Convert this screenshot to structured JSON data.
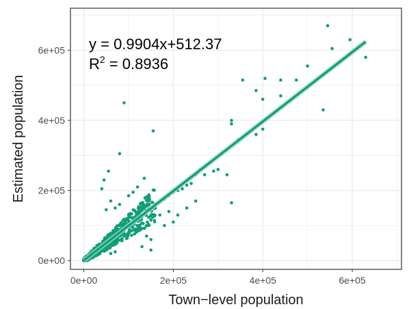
{
  "chart_data": {
    "type": "scatter",
    "title": "",
    "xlabel": "Town−level population",
    "ylabel": "Estimated population",
    "xlim": [
      -30000,
      710000
    ],
    "ylim": [
      -25000,
      720000
    ],
    "x_ticks": [
      0,
      200000,
      400000,
      600000
    ],
    "x_tick_labels": [
      "0e+00",
      "2e+05",
      "4e+05",
      "6e+05"
    ],
    "y_ticks": [
      0,
      200000,
      400000,
      600000
    ],
    "y_tick_labels": [
      "0e+00",
      "2e+05",
      "4e+05",
      "6e+05"
    ],
    "grid": true,
    "legend": "none",
    "colors": {
      "points": "#0f9e78",
      "line": "#0f9e78",
      "band": "#9fd6c2",
      "grid": "#ebebeb",
      "border": "#333333"
    },
    "annotation": {
      "equation": "y = 0.9904x+512.37",
      "r2_base": "R",
      "r2_sup": "2",
      "r2_value": " = 0.8936"
    },
    "fit": {
      "slope": 0.9904,
      "intercept": 512.37,
      "x_range": [
        0,
        630000
      ]
    },
    "points": [
      [
        545000,
        670000
      ],
      [
        555000,
        605000
      ],
      [
        595000,
        630000
      ],
      [
        630000,
        580000
      ],
      [
        500000,
        555000
      ],
      [
        535000,
        430000
      ],
      [
        475000,
        515000
      ],
      [
        440000,
        515000
      ],
      [
        405000,
        520000
      ],
      [
        440000,
        470000
      ],
      [
        400000,
        460000
      ],
      [
        385000,
        485000
      ],
      [
        355000,
        515000
      ],
      [
        400000,
        375000
      ],
      [
        330000,
        400000
      ],
      [
        330000,
        390000
      ],
      [
        385000,
        360000
      ],
      [
        345000,
        345000
      ],
      [
        330000,
        165000
      ],
      [
        320000,
        245000
      ],
      [
        290000,
        255000
      ],
      [
        300000,
        260000
      ],
      [
        270000,
        245000
      ],
      [
        260000,
        260000
      ],
      [
        250000,
        245000
      ],
      [
        240000,
        220000
      ],
      [
        230000,
        215000
      ],
      [
        220000,
        205000
      ],
      [
        210000,
        200000
      ],
      [
        200000,
        195000
      ],
      [
        190000,
        185000
      ],
      [
        180000,
        175000
      ],
      [
        155000,
        370000
      ],
      [
        90000,
        450000
      ],
      [
        80000,
        305000
      ],
      [
        55000,
        255000
      ],
      [
        45000,
        230000
      ],
      [
        40000,
        205000
      ],
      [
        135000,
        235000
      ],
      [
        120000,
        210000
      ],
      [
        110000,
        195000
      ],
      [
        100000,
        185000
      ],
      [
        150000,
        60000
      ],
      [
        140000,
        70000
      ],
      [
        130000,
        40000
      ],
      [
        150000,
        30000
      ],
      [
        120000,
        90000
      ],
      [
        100000,
        80000
      ],
      [
        90000,
        70000
      ],
      [
        60000,
        170000
      ],
      [
        50000,
        145000
      ],
      [
        70000,
        150000
      ],
      [
        80000,
        160000
      ],
      [
        170000,
        130000
      ],
      [
        160000,
        150000
      ],
      [
        190000,
        140000
      ],
      [
        210000,
        130000
      ],
      [
        230000,
        150000
      ],
      [
        250000,
        170000
      ],
      [
        200000,
        110000
      ],
      [
        180000,
        100000
      ],
      [
        60000,
        20000
      ],
      [
        70000,
        25000
      ]
    ]
  }
}
